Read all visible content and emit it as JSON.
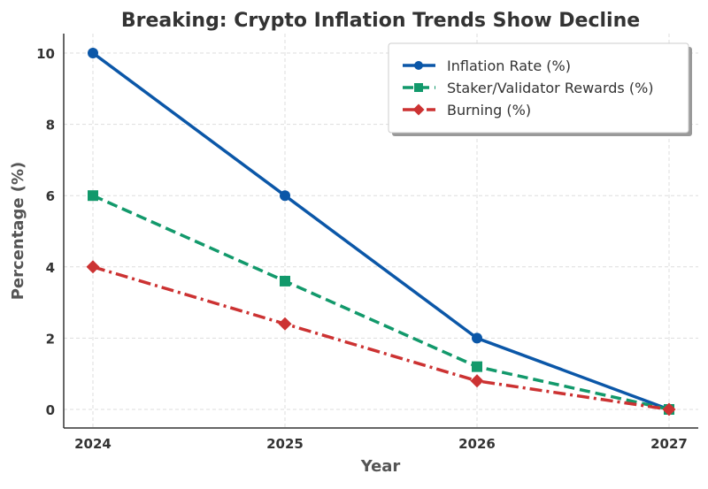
{
  "chart_data": {
    "type": "line",
    "title": "Breaking: Crypto Inflation Trends Show Decline",
    "xlabel": "Year",
    "ylabel": "Percentage (%)",
    "x": [
      2024,
      2025,
      2026,
      2027
    ],
    "x_tick_labels": [
      "2024",
      "2025",
      "2026",
      "2027"
    ],
    "y_ticks": [
      0,
      2,
      4,
      6,
      8,
      10
    ],
    "ylim": [
      -0.5,
      10.5
    ],
    "grid": true,
    "legend_position": "top-right",
    "series": [
      {
        "name": "Inflation Rate (%)",
        "values": [
          10,
          6,
          2,
          0
        ],
        "color": "#0b57a8",
        "marker": "circle",
        "linestyle": "solid"
      },
      {
        "name": "Staker/Validator Rewards (%)",
        "values": [
          6,
          3.6,
          1.2,
          0
        ],
        "color": "#12996b",
        "marker": "square",
        "linestyle": "dashed"
      },
      {
        "name": "Burning (%)",
        "values": [
          4,
          2.4,
          0.8,
          0
        ],
        "color": "#cc3232",
        "marker": "diamond",
        "linestyle": "dashdot"
      }
    ]
  }
}
